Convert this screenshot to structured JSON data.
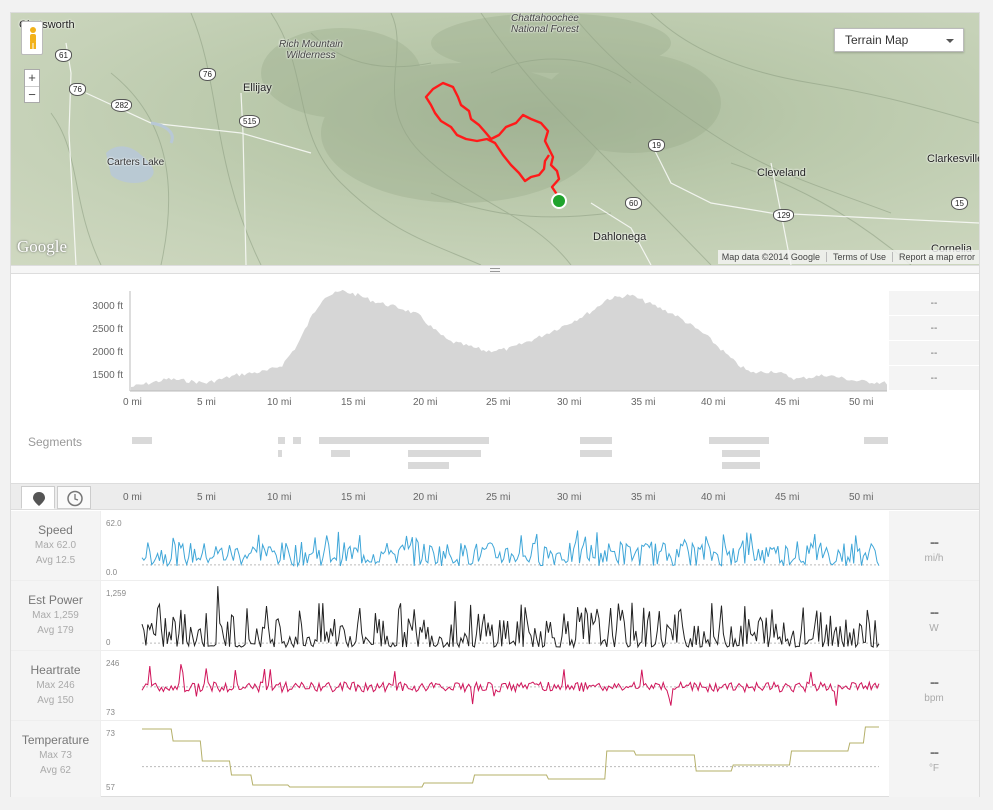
{
  "map": {
    "type_selector": "Terrain Map",
    "zoom_in": "+",
    "zoom_out": "−",
    "logo": "Google",
    "attribution": [
      "Map data ©2014 Google",
      "Terms of Use",
      "Report a map error"
    ],
    "places": {
      "chatsworth": "Chatsworth",
      "chattahoochee": "Chattahoochee\nNational Forest",
      "rich_mountain": "Rich Mountain\nWilderness",
      "ellijay": "Ellijay",
      "carters_lake": "Carters Lake",
      "cleveland": "Cleveland",
      "clarkesville": "Clarkesville",
      "dahlonega": "Dahlonega",
      "cornelia": "Cornelia"
    },
    "shields": [
      "61",
      "76",
      "76",
      "282",
      "515",
      "19",
      "60",
      "129",
      "15"
    ]
  },
  "elevation": {
    "y_ticks": [
      "3000 ft",
      "2500 ft",
      "2000 ft",
      "1500 ft"
    ],
    "x_ticks": [
      "0 mi",
      "5 mi",
      "10 mi",
      "15 mi",
      "20 mi",
      "25 mi",
      "30 mi",
      "35 mi",
      "40 mi",
      "45 mi",
      "50 mi"
    ],
    "right_values": [
      "--",
      "--",
      "--",
      "--"
    ]
  },
  "segments": {
    "title": "Segments"
  },
  "tabbar": {
    "distance_icon": "map-pin-icon",
    "time_icon": "clock-icon",
    "x_ticks": [
      "0 mi",
      "5 mi",
      "10 mi",
      "15 mi",
      "20 mi",
      "25 mi",
      "30 mi",
      "35 mi",
      "40 mi",
      "45 mi",
      "50 mi"
    ]
  },
  "streams": [
    {
      "name": "Speed",
      "max": "Max 62.0",
      "avg": "Avg 12.5",
      "top": "62.0",
      "bottom": "0.0",
      "value": "--",
      "unit": "mi/h",
      "color": "#3fa6d8"
    },
    {
      "name": "Est Power",
      "max": "Max 1,259",
      "avg": "Avg 179",
      "top": "1,259",
      "bottom": "0",
      "value": "--",
      "unit": "W",
      "color": "#222222"
    },
    {
      "name": "Heartrate",
      "max": "Max 246",
      "avg": "Avg 150",
      "top": "246",
      "bottom": "73",
      "value": "--",
      "unit": "bpm",
      "color": "#d0145a"
    },
    {
      "name": "Temperature",
      "max": "Max 73",
      "avg": "Avg 62",
      "top": "73",
      "bottom": "57",
      "value": "--",
      "unit": "°F",
      "color": "#b5b06a"
    }
  ]
}
